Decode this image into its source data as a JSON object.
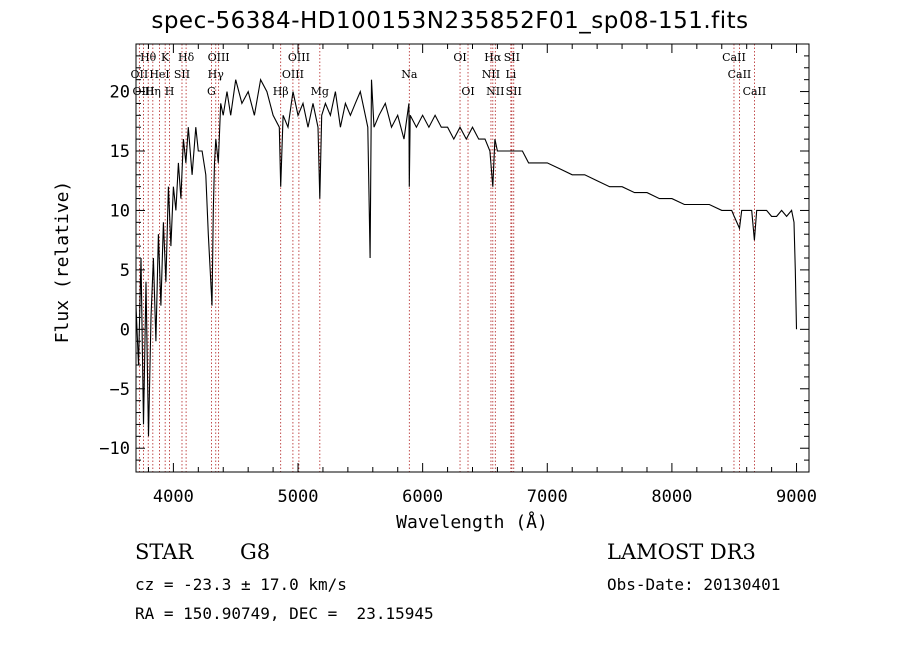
{
  "title": "spec-56384-HD100153N235852F01_sp08-151.fits",
  "chart_data": {
    "type": "line",
    "title": "spec-56384-HD100153N235852F01_sp08-151.fits",
    "xlabel": "Wavelength (Å)",
    "ylabel": "Flux (relative)",
    "xlim": [
      3700,
      9100
    ],
    "ylim": [
      -12,
      24
    ],
    "xticks": [
      4000,
      5000,
      6000,
      7000,
      8000,
      9000
    ],
    "yticks": [
      -10,
      -5,
      0,
      5,
      10,
      15,
      20
    ],
    "grid": false,
    "series": [
      {
        "name": "flux",
        "x": [
          3700,
          3720,
          3740,
          3760,
          3780,
          3800,
          3820,
          3840,
          3860,
          3880,
          3900,
          3920,
          3940,
          3960,
          3980,
          4000,
          4020,
          4040,
          4060,
          4080,
          4100,
          4120,
          4150,
          4180,
          4200,
          4230,
          4260,
          4280,
          4300,
          4310,
          4320,
          4330,
          4340,
          4360,
          4380,
          4400,
          4430,
          4460,
          4500,
          4550,
          4600,
          4650,
          4700,
          4750,
          4800,
          4850,
          4861,
          4880,
          4920,
          4960,
          5000,
          5040,
          5080,
          5120,
          5160,
          5175,
          5190,
          5220,
          5260,
          5300,
          5340,
          5380,
          5420,
          5460,
          5500,
          5540,
          5560,
          5578,
          5590,
          5610,
          5650,
          5700,
          5750,
          5800,
          5850,
          5890,
          5893,
          5900,
          5950,
          6000,
          6050,
          6100,
          6150,
          6200,
          6250,
          6300,
          6350,
          6400,
          6450,
          6500,
          6540,
          6563,
          6580,
          6600,
          6650,
          6700,
          6750,
          6800,
          6850,
          6900,
          6950,
          7000,
          7100,
          7200,
          7300,
          7400,
          7500,
          7600,
          7700,
          7800,
          7900,
          8000,
          8100,
          8200,
          8300,
          8400,
          8480,
          8500,
          8542,
          8560,
          8600,
          8640,
          8662,
          8680,
          8720,
          8760,
          8800,
          8840,
          8880,
          8920,
          8960,
          8980,
          8990,
          9000
        ],
        "y": [
          2,
          -3,
          6,
          -8,
          4,
          -9,
          1,
          6,
          -1,
          8,
          2,
          9,
          4,
          12,
          7,
          12,
          10,
          14,
          11,
          16,
          14,
          17,
          13,
          17,
          15,
          15,
          13,
          8,
          4,
          2,
          10,
          14,
          16,
          14,
          19,
          18,
          20,
          18,
          21,
          19,
          20,
          18,
          21,
          20,
          18,
          17,
          12,
          18,
          17,
          20,
          18,
          19,
          17,
          19,
          17,
          11,
          18,
          19,
          18,
          20,
          17,
          19,
          18,
          19,
          20,
          18,
          17,
          6,
          21,
          17,
          18,
          19,
          17,
          18,
          16,
          19,
          12,
          18,
          17,
          18,
          17,
          18,
          17,
          17,
          16,
          17,
          16,
          17,
          16,
          16,
          15,
          12,
          16,
          15,
          15,
          15,
          15,
          15,
          14,
          14,
          14,
          14,
          13.5,
          13,
          13,
          12.5,
          12,
          12,
          11.5,
          11.5,
          11,
          11,
          10.5,
          10.5,
          10.5,
          10,
          10,
          9.5,
          8.5,
          10,
          10,
          10,
          7.5,
          10,
          10,
          10,
          9.5,
          9.5,
          10,
          9.5,
          10,
          9,
          5,
          0
        ]
      }
    ],
    "line_labels": [
      {
        "text": "Hθ",
        "wavelength": 3798,
        "row": 1
      },
      {
        "text": "OII",
        "wavelength": 3727,
        "row": 2
      },
      {
        "text": "OIII",
        "wavelength": 3760,
        "row": 3
      },
      {
        "text": "K",
        "wavelength": 3934,
        "row": 1
      },
      {
        "text": "HeI",
        "wavelength": 3889,
        "row": 2
      },
      {
        "text": "Hη",
        "wavelength": 3835,
        "row": 3
      },
      {
        "text": "Hδ",
        "wavelength": 4102,
        "row": 1
      },
      {
        "text": "SII",
        "wavelength": 4069,
        "row": 2
      },
      {
        "text": "H",
        "wavelength": 3969,
        "row": 3
      },
      {
        "text": "OIII",
        "wavelength": 4363,
        "row": 1
      },
      {
        "text": "Hγ",
        "wavelength": 4340,
        "row": 2
      },
      {
        "text": "G",
        "wavelength": 4305,
        "row": 3
      },
      {
        "text": "OIII",
        "wavelength": 5007,
        "row": 1
      },
      {
        "text": "OIII",
        "wavelength": 4959,
        "row": 2
      },
      {
        "text": "Hβ",
        "wavelength": 4861,
        "row": 3
      },
      {
        "text": "Mg",
        "wavelength": 5175,
        "row": 3
      },
      {
        "text": "Na",
        "wavelength": 5893,
        "row": 2
      },
      {
        "text": "OI",
        "wavelength": 6300,
        "row": 1
      },
      {
        "text": "OI",
        "wavelength": 6364,
        "row": 3
      },
      {
        "text": "Hα",
        "wavelength": 6563,
        "row": 1
      },
      {
        "text": "SII",
        "wavelength": 6716,
        "row": 1
      },
      {
        "text": "NII",
        "wavelength": 6548,
        "row": 2
      },
      {
        "text": "Li",
        "wavelength": 6708,
        "row": 2
      },
      {
        "text": "NII",
        "wavelength": 6583,
        "row": 3
      },
      {
        "text": "SII",
        "wavelength": 6731,
        "row": 3
      },
      {
        "text": "CaII",
        "wavelength": 8498,
        "row": 1
      },
      {
        "text": "CaII",
        "wavelength": 8542,
        "row": 2
      },
      {
        "text": "CaII",
        "wavelength": 8662,
        "row": 3
      }
    ],
    "line_marker_wavelengths": [
      3727,
      3760,
      3798,
      3835,
      3889,
      3934,
      3969,
      4069,
      4102,
      4305,
      4340,
      4363,
      4861,
      4959,
      5007,
      5175,
      5893,
      6300,
      6364,
      6548,
      6563,
      6583,
      6708,
      6716,
      6731,
      8498,
      8542,
      8662
    ],
    "colors": {
      "line": "#000000",
      "markers": "#b22222"
    }
  },
  "info": {
    "object_class": "STAR",
    "subclass": "G8",
    "cz": "cz = -23.3 ± 17.0 km/s",
    "coords": "RA = 150.90749, DEC =  23.15945",
    "survey": "LAMOST DR3",
    "obs_date": "Obs-Date: 20130401"
  }
}
